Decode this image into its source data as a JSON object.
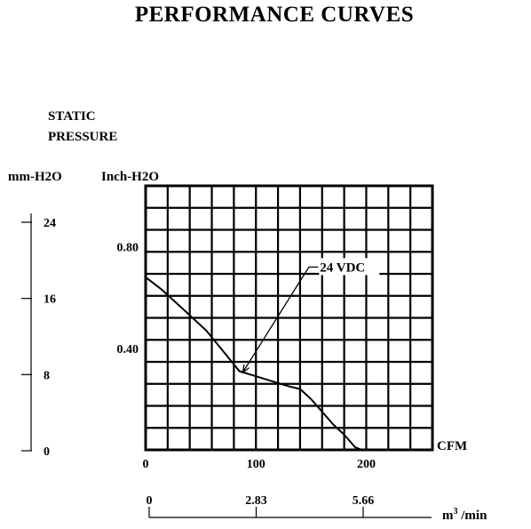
{
  "chart_data": {
    "type": "line",
    "title": "PERFORMANCE  CURVES",
    "ylabel": [
      "STATIC",
      "PRESSURE"
    ],
    "y_units": {
      "inch": "Inch-H2O",
      "mm": "mm-H2O"
    },
    "x_units": {
      "cfm": "CFM",
      "m3": "m3/min"
    },
    "xlim": [
      0,
      260
    ],
    "ylim": [
      0,
      1.04
    ],
    "x_ticks": [
      {
        "value": 0,
        "label": "0"
      },
      {
        "value": 100,
        "label": "100"
      },
      {
        "value": 200,
        "label": "200"
      }
    ],
    "y_ticks_inch": [
      {
        "value": 0.4,
        "label": "0.40"
      },
      {
        "value": 0.8,
        "label": "0.80"
      }
    ],
    "y_ticks_mm": [
      {
        "value": 0,
        "label": "0"
      },
      {
        "value": 8,
        "label": "8"
      },
      {
        "value": 16,
        "label": "16"
      },
      {
        "value": 24,
        "label": "24"
      }
    ],
    "x_ticks_m3": [
      {
        "value": 0,
        "label": "0"
      },
      {
        "value": 2.83,
        "label": "2.83"
      },
      {
        "value": 5.66,
        "label": "5.66"
      }
    ],
    "grid": true,
    "series": [
      {
        "name": "24 VDC",
        "x": [
          0,
          15,
          35,
          55,
          70,
          85,
          100,
          115,
          130,
          140,
          150,
          160,
          170,
          180,
          190,
          196
        ],
        "y": [
          0.68,
          0.63,
          0.55,
          0.47,
          0.39,
          0.31,
          0.29,
          0.27,
          0.25,
          0.24,
          0.2,
          0.15,
          0.1,
          0.06,
          0.01,
          0.0
        ]
      }
    ]
  }
}
